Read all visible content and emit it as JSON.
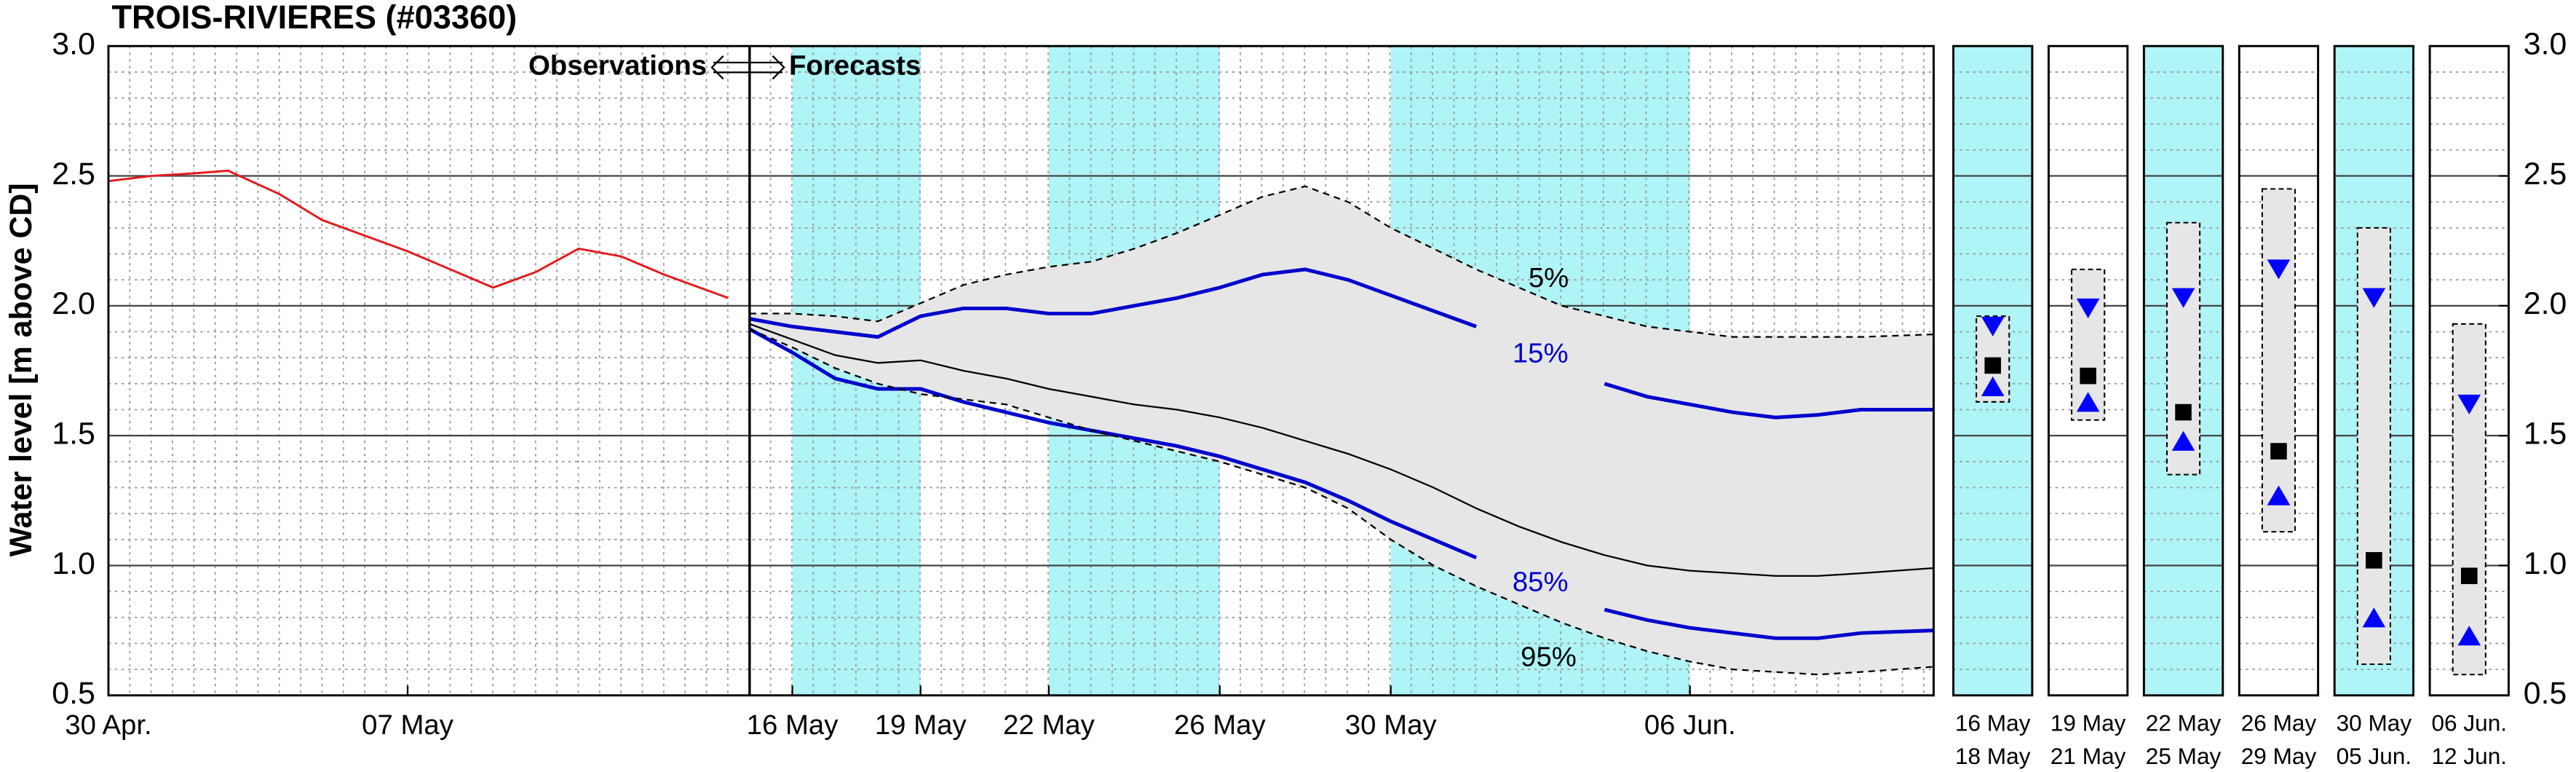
{
  "chart_data": {
    "type": "line",
    "title": "TROIS-RIVIERES (#03360)",
    "ylabel": "Water level [m above CD]",
    "annotation_left": "Observations",
    "annotation_right": "Forecasts",
    "xlim": [
      120,
      162.7
    ],
    "ylim": [
      0.5,
      3.0
    ],
    "xticks": [
      {
        "value": 120,
        "label": "30 Apr."
      },
      {
        "value": 127,
        "label": "07 May"
      },
      {
        "value": 136,
        "label": "16 May"
      },
      {
        "value": 139,
        "label": "19 May"
      },
      {
        "value": 142,
        "label": "22 May"
      },
      {
        "value": 146,
        "label": "26 May"
      },
      {
        "value": 150,
        "label": "30 May"
      },
      {
        "value": 157,
        "label": "06 Jun."
      }
    ],
    "yticks": [
      {
        "value": 0.5,
        "label": "0.5"
      },
      {
        "value": 1,
        "label": "1.0"
      },
      {
        "value": 1.5,
        "label": "1.5"
      },
      {
        "value": 2,
        "label": "2.0"
      },
      {
        "value": 2.5,
        "label": "2.5"
      },
      {
        "value": 3,
        "label": "3.0"
      }
    ],
    "grid": true,
    "forecast_start": 135,
    "highlight_color": "#aff4f6",
    "highlight_ranges": [
      [
        136,
        139
      ],
      [
        142,
        146
      ],
      [
        150,
        157
      ]
    ],
    "band_color": "#e6e6e6",
    "observations": {
      "color": "#e31a1c",
      "x": [
        120,
        121,
        122,
        122.8,
        124,
        125,
        126,
        127,
        128,
        129,
        130,
        131,
        132,
        133,
        134.5
      ],
      "values": [
        2.48,
        2.5,
        2.51,
        2.52,
        2.43,
        2.33,
        2.27,
        2.21,
        2.14,
        2.07,
        2.13,
        2.22,
        2.19,
        2.12,
        2.03
      ]
    },
    "forecast": {
      "x": [
        135,
        136,
        137,
        138,
        139,
        140,
        141,
        142,
        143,
        144,
        145,
        146,
        147,
        148,
        149,
        150,
        151,
        152,
        153,
        154,
        155,
        156,
        157,
        158,
        159,
        160,
        161,
        162.7
      ],
      "series": [
        {
          "name": "5%",
          "color": "#000000",
          "dashed": true,
          "values": [
            1.97,
            1.97,
            1.96,
            1.94,
            2.01,
            2.08,
            2.12,
            2.15,
            2.17,
            2.22,
            2.28,
            2.35,
            2.42,
            2.46,
            2.4,
            2.3,
            2.22,
            2.14,
            2.07,
            2.0,
            1.96,
            1.92,
            1.9,
            1.88,
            1.88,
            1.88,
            1.88,
            1.89
          ]
        },
        {
          "name": "15%",
          "color": "#0000cc",
          "values": [
            1.95,
            1.92,
            1.9,
            1.88,
            1.96,
            1.99,
            1.99,
            1.97,
            1.97,
            2.0,
            2.03,
            2.07,
            2.12,
            2.14,
            2.1,
            2.04,
            1.98,
            1.92,
            null,
            null,
            1.7,
            1.65,
            1.62,
            1.59,
            1.57,
            1.58,
            1.6,
            1.6
          ]
        },
        {
          "color": "#000000",
          "values": [
            1.93,
            1.87,
            1.81,
            1.78,
            1.79,
            1.75,
            1.72,
            1.68,
            1.65,
            1.62,
            1.6,
            1.57,
            1.53,
            1.48,
            1.43,
            1.37,
            1.3,
            1.22,
            1.15,
            1.09,
            1.04,
            1.0,
            0.98,
            0.97,
            0.96,
            0.96,
            0.97,
            0.99
          ]
        },
        {
          "name": "85%",
          "color": "#0000cc",
          "values": [
            1.91,
            1.82,
            1.72,
            1.68,
            1.68,
            1.63,
            1.59,
            1.55,
            1.52,
            1.49,
            1.46,
            1.42,
            1.37,
            1.32,
            1.25,
            1.17,
            1.1,
            1.03,
            null,
            null,
            0.83,
            0.79,
            0.76,
            0.74,
            0.72,
            0.72,
            0.74,
            0.75
          ]
        },
        {
          "name": "95%",
          "color": "#000000",
          "dashed": true,
          "values": [
            1.91,
            1.84,
            1.76,
            1.7,
            1.66,
            1.64,
            1.62,
            1.57,
            1.52,
            1.48,
            1.44,
            1.4,
            1.35,
            1.3,
            1.22,
            1.1,
            1.0,
            0.92,
            0.85,
            0.78,
            0.72,
            0.67,
            0.63,
            0.6,
            0.59,
            0.58,
            0.59,
            0.61
          ]
        }
      ]
    },
    "summary": [
      {
        "period": [
          "16 May",
          "18 May"
        ],
        "highlight": true,
        "min": 1.63,
        "max": 1.96,
        "upper": 1.92,
        "median": 1.77,
        "lower": 1.69
      },
      {
        "period": [
          "19 May",
          "21 May"
        ],
        "highlight": false,
        "min": 1.56,
        "max": 2.14,
        "upper": 1.99,
        "median": 1.73,
        "lower": 1.63
      },
      {
        "period": [
          "22 May",
          "25 May"
        ],
        "highlight": true,
        "min": 1.35,
        "max": 2.32,
        "upper": 2.03,
        "median": 1.59,
        "lower": 1.48
      },
      {
        "period": [
          "26 May",
          "29 May"
        ],
        "highlight": false,
        "min": 1.13,
        "max": 2.45,
        "upper": 2.14,
        "median": 1.44,
        "lower": 1.27
      },
      {
        "period": [
          "30 May",
          "05 Jun."
        ],
        "highlight": true,
        "min": 0.62,
        "max": 2.3,
        "upper": 2.03,
        "median": 1.02,
        "lower": 0.8
      },
      {
        "period": [
          "06 Jun.",
          "12 Jun."
        ],
        "highlight": false,
        "min": 0.58,
        "max": 1.93,
        "upper": 1.62,
        "median": 0.96,
        "lower": 0.73
      }
    ],
    "marker_color": "#0000ff",
    "median_color": "#000000"
  }
}
